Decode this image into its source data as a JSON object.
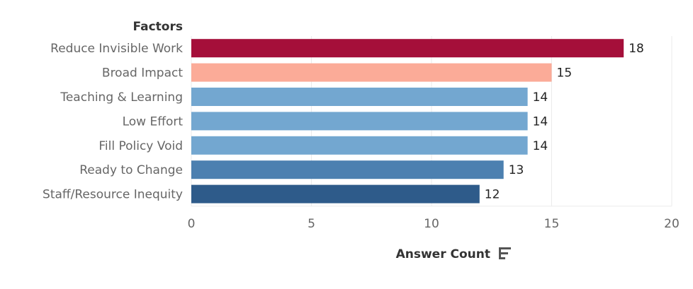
{
  "chart_data": {
    "type": "bar",
    "orientation": "horizontal",
    "row_header": "Factors",
    "xlabel": "Answer Count",
    "xlim": [
      0,
      20
    ],
    "xticks": [
      0,
      5,
      10,
      15,
      20
    ],
    "grid": true,
    "categories": [
      "Reduce Invisible Work",
      "Broad Impact",
      "Teaching & Learning",
      "Low Effort",
      "Fill Policy Void",
      "Ready to Change",
      "Staff/Resource Inequity"
    ],
    "values": [
      18,
      15,
      14,
      14,
      14,
      13,
      12
    ],
    "colors": [
      "#a50f3a",
      "#fbab98",
      "#73a7d0",
      "#73a7d0",
      "#73a7d0",
      "#4c80b0",
      "#2e5b8a"
    ],
    "sort_icon": "sort-descending-icon"
  }
}
